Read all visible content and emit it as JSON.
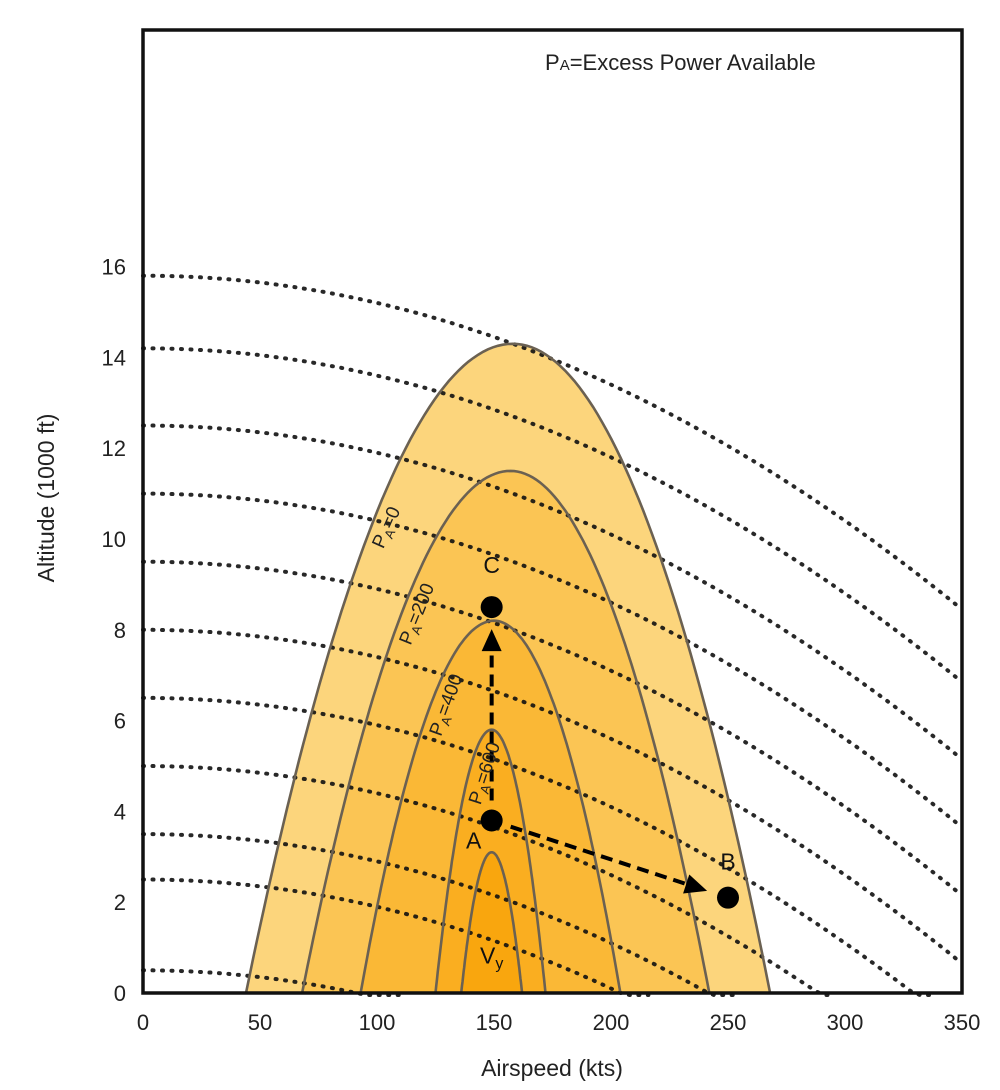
{
  "chart_data": {
    "type": "area",
    "title": "",
    "note": {
      "main": "P",
      "sub": "A",
      "rest": "=Excess Power Available"
    },
    "xlabel": "Airspeed (kts)",
    "ylabel": "Altitude (1000 ft)",
    "xlim": [
      0,
      350
    ],
    "ylim": [
      0,
      16.5
    ],
    "xticks": [
      "0",
      "50",
      "100",
      "150",
      "200",
      "250",
      "300",
      "350"
    ],
    "yticks": [
      "0",
      "2",
      "4",
      "6",
      "8",
      "10",
      "12",
      "14",
      "16"
    ],
    "grid": false,
    "colors": {
      "p0": "#fcd57c",
      "p200": "#fbc554",
      "p400": "#fab836",
      "p600": "#faae20",
      "inner": "#f9a60e",
      "outline": "#6b6152",
      "dots": "#111111",
      "points": "#000000"
    },
    "contours": [
      {
        "label": "P_A=0",
        "name_main": "P",
        "name_sub": "A",
        "name_rest": "=0",
        "x_min": 44,
        "x_max": 268,
        "peak_x": 158,
        "peak_alt": 14.3
      },
      {
        "label": "P_A=200",
        "name_main": "P",
        "name_sub": "A",
        "name_rest": "=200",
        "x_min": 68,
        "x_max": 242,
        "peak_x": 157,
        "peak_alt": 11.5
      },
      {
        "label": "P_A=400",
        "name_main": "P",
        "name_sub": "A",
        "name_rest": "=400",
        "x_min": 93,
        "x_max": 204,
        "peak_x": 150,
        "peak_alt": 8.2
      },
      {
        "label": "P_A=600",
        "name_main": "P",
        "name_sub": "A",
        "name_rest": "=600",
        "x_min": 125,
        "x_max": 172,
        "peak_x": 149,
        "peak_alt": 5.8
      },
      {
        "label": "inner",
        "name_main": "",
        "name_sub": "",
        "name_rest": "",
        "x_min": 136,
        "x_max": 162,
        "peak_x": 149,
        "peak_alt": 3.1
      }
    ],
    "energy_lines_start_alt": [
      0.5,
      2.5,
      3.5,
      5.0,
      6.5,
      8.0,
      9.5,
      11.0,
      12.5,
      14.2,
      15.8
    ],
    "points": [
      {
        "name": "A",
        "x": 149,
        "y": 3.8
      },
      {
        "name": "B",
        "x": 250,
        "y": 2.1
      },
      {
        "name": "C",
        "x": 149,
        "y": 8.5
      }
    ],
    "arrows": [
      {
        "from": "A",
        "to": "C"
      },
      {
        "from": "A",
        "to": "B"
      }
    ],
    "annotations": {
      "vy_main": "V",
      "vy_sub": "y",
      "vy_x": 149,
      "vy_alt": 0.65
    }
  }
}
